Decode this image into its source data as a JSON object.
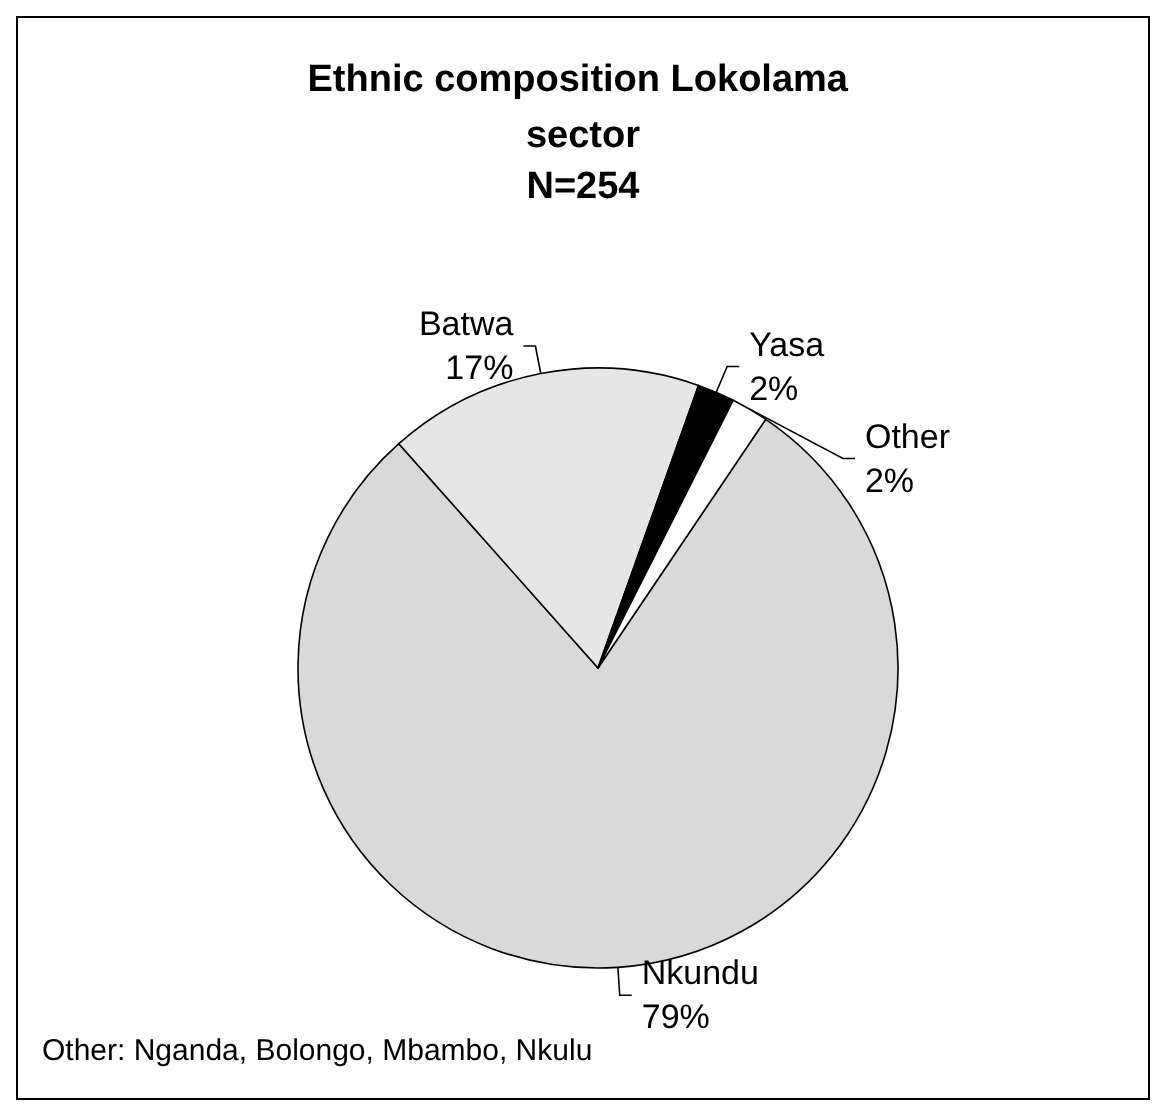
{
  "chart_data": {
    "type": "pie",
    "title": "Ethnic composition Lokolama sector",
    "subtitle": "N=254",
    "categories": [
      "Nkundu",
      "Batwa",
      "Yasa",
      "Other"
    ],
    "values": [
      79,
      17,
      2,
      2
    ],
    "colors": [
      "#d9d9d9",
      "#e6e6e6",
      "#000000",
      "#ffffff"
    ],
    "value_labels": [
      "79%",
      "17%",
      "2%",
      "2%"
    ],
    "legend": false,
    "annotations": [
      "Other: Nganda, Bolongo, Mbambo, Nkulu"
    ]
  }
}
